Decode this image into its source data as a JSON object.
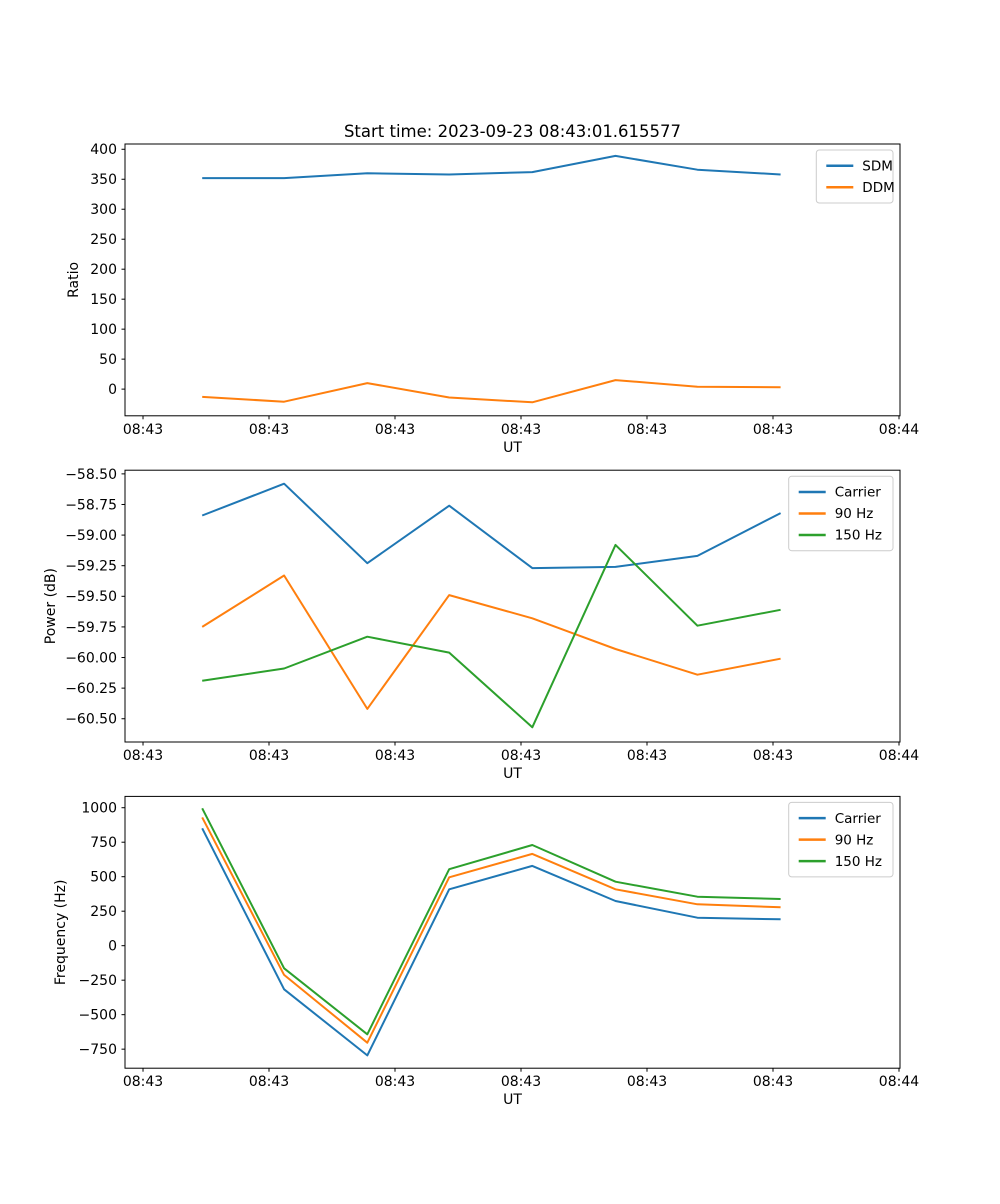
{
  "figure": {
    "title": "Start time: 2023-09-23 08:43:01.615577",
    "background": "#ffffff",
    "colors": {
      "blue": "#1f77b4",
      "orange": "#ff7f0e",
      "green": "#2ca02c"
    }
  },
  "chart_data": [
    {
      "id": "ratio",
      "type": "line",
      "title": "",
      "xlabel": "UT",
      "ylabel": "Ratio",
      "grid": false,
      "legend_position": "upper right",
      "x_seconds": [
        4.7,
        11.2,
        17.8,
        24.3,
        30.9,
        37.5,
        44.0,
        50.6
      ],
      "xlim": [
        -1.43,
        60.08
      ],
      "ylim": [
        -44.5,
        408.8
      ],
      "x_ticks": [
        {
          "value": 0,
          "label": "08:43"
        },
        {
          "value": 10,
          "label": "08:43"
        },
        {
          "value": 20,
          "label": "08:43"
        },
        {
          "value": 30,
          "label": "08:43"
        },
        {
          "value": 40,
          "label": "08:43"
        },
        {
          "value": 50,
          "label": "08:43"
        },
        {
          "value": 60,
          "label": "08:44"
        }
      ],
      "y_ticks": [
        {
          "value": 400,
          "label": "400"
        },
        {
          "value": 350,
          "label": "350"
        },
        {
          "value": 300,
          "label": "300"
        },
        {
          "value": 250,
          "label": "250"
        },
        {
          "value": 200,
          "label": "200"
        },
        {
          "value": 150,
          "label": "150"
        },
        {
          "value": 100,
          "label": "100"
        },
        {
          "value": 50,
          "label": "50"
        },
        {
          "value": 0,
          "label": "0"
        }
      ],
      "series": [
        {
          "name": "SDM",
          "color": "#1f77b4",
          "values": [
            352,
            352,
            360,
            358,
            362,
            389,
            366,
            358
          ]
        },
        {
          "name": "DDM",
          "color": "#ff7f0e",
          "values": [
            -13,
            -21,
            10,
            -14,
            -22,
            15,
            4,
            3
          ]
        }
      ]
    },
    {
      "id": "power",
      "type": "line",
      "title": "",
      "xlabel": "UT",
      "ylabel": "Power (dB)",
      "grid": false,
      "legend_position": "upper right",
      "x_seconds": [
        4.7,
        11.2,
        17.8,
        24.3,
        30.9,
        37.5,
        44.0,
        50.6
      ],
      "xlim": [
        -1.43,
        60.08
      ],
      "ylim": [
        -60.69,
        -58.47
      ],
      "x_ticks": [
        {
          "value": 0,
          "label": "08:43"
        },
        {
          "value": 10,
          "label": "08:43"
        },
        {
          "value": 20,
          "label": "08:43"
        },
        {
          "value": 30,
          "label": "08:43"
        },
        {
          "value": 40,
          "label": "08:43"
        },
        {
          "value": 50,
          "label": "08:43"
        },
        {
          "value": 60,
          "label": "08:44"
        }
      ],
      "y_ticks": [
        {
          "value": -58.5,
          "label": "−58.50"
        },
        {
          "value": -58.75,
          "label": "−58.75"
        },
        {
          "value": -59.0,
          "label": "−59.00"
        },
        {
          "value": -59.25,
          "label": "−59.25"
        },
        {
          "value": -59.5,
          "label": "−59.50"
        },
        {
          "value": -59.75,
          "label": "−59.75"
        },
        {
          "value": -60.0,
          "label": "−60.00"
        },
        {
          "value": -60.25,
          "label": "−60.25"
        },
        {
          "value": -60.5,
          "label": "−60.50"
        }
      ],
      "series": [
        {
          "name": "Carrier",
          "color": "#1f77b4",
          "values": [
            -58.84,
            -58.58,
            -59.23,
            -58.76,
            -59.27,
            -59.26,
            -59.17,
            -58.82
          ]
        },
        {
          "name": "90 Hz",
          "color": "#ff7f0e",
          "values": [
            -59.75,
            -59.33,
            -60.42,
            -59.49,
            -59.68,
            -59.93,
            -60.14,
            -60.01
          ]
        },
        {
          "name": "150 Hz",
          "color": "#2ca02c",
          "values": [
            -60.19,
            -60.09,
            -59.83,
            -59.96,
            -60.57,
            -59.08,
            -59.74,
            -59.61
          ]
        }
      ]
    },
    {
      "id": "frequency",
      "type": "line",
      "title": "",
      "xlabel": "UT",
      "ylabel": "Frequency (Hz)",
      "grid": false,
      "legend_position": "upper right",
      "x_seconds": [
        4.7,
        11.2,
        17.8,
        24.3,
        30.9,
        37.5,
        44.0,
        50.6
      ],
      "xlim": [
        -1.43,
        60.08
      ],
      "ylim": [
        -888,
        1082
      ],
      "x_ticks": [
        {
          "value": 0,
          "label": "08:43"
        },
        {
          "value": 10,
          "label": "08:43"
        },
        {
          "value": 20,
          "label": "08:43"
        },
        {
          "value": 30,
          "label": "08:43"
        },
        {
          "value": 40,
          "label": "08:43"
        },
        {
          "value": 50,
          "label": "08:43"
        },
        {
          "value": 60,
          "label": "08:44"
        }
      ],
      "y_ticks": [
        {
          "value": 1000,
          "label": "1000"
        },
        {
          "value": 750,
          "label": "750"
        },
        {
          "value": 500,
          "label": "500"
        },
        {
          "value": 250,
          "label": "250"
        },
        {
          "value": 0,
          "label": "0"
        },
        {
          "value": -250,
          "label": "−250"
        },
        {
          "value": -500,
          "label": "−500"
        },
        {
          "value": -750,
          "label": "−750"
        }
      ],
      "series": [
        {
          "name": "Carrier",
          "color": "#1f77b4",
          "values": [
            851,
            -316,
            -795,
            409,
            578,
            324,
            203,
            191
          ]
        },
        {
          "name": "90 Hz",
          "color": "#ff7f0e",
          "values": [
            930,
            -212,
            -703,
            496,
            665,
            409,
            300,
            278
          ]
        },
        {
          "name": "150 Hz",
          "color": "#2ca02c",
          "values": [
            996,
            -164,
            -642,
            554,
            730,
            464,
            355,
            338
          ]
        }
      ]
    }
  ]
}
